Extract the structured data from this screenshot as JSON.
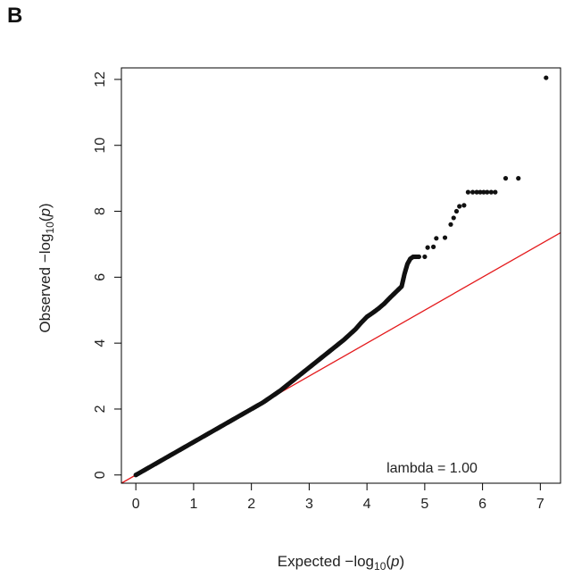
{
  "panel_label": "B",
  "colors": {
    "points": "#111111",
    "reference_line": "#e41a1c",
    "axis": "#000000"
  },
  "chart_data": {
    "type": "scatter",
    "title": "",
    "xlabel": "Expected −log₁₀(p)",
    "ylabel": "Observed −log₁₀(p)",
    "xlabel_parts": {
      "prefix": "Expected  −log",
      "sub": "10",
      "open": "(",
      "var": "p",
      "close": ")"
    },
    "ylabel_parts": {
      "prefix": "Observed  −log",
      "sub": "10",
      "open": "(",
      "var": "p",
      "close": ")"
    },
    "xlim": [
      -0.25,
      7.35
    ],
    "ylim": [
      -0.25,
      12.35
    ],
    "x_ticks": [
      0,
      1,
      2,
      3,
      4,
      5,
      6,
      7
    ],
    "x_tick_labels": [
      "0",
      "1",
      "2",
      "3",
      "4",
      "5",
      "6",
      "7"
    ],
    "y_ticks": [
      0,
      2,
      4,
      6,
      8,
      10,
      12
    ],
    "y_tick_labels": [
      "0",
      "2",
      "4",
      "6",
      "8",
      "10",
      "12"
    ],
    "grid": false,
    "reference_line": {
      "slope": 1,
      "intercept": 0
    },
    "annotation": "lambda = 1.00",
    "series": [
      {
        "type": "scatter",
        "points": [
          [
            0,
            0
          ],
          [
            0.1,
            0.1
          ],
          [
            0.2,
            0.2
          ],
          [
            0.3,
            0.3
          ],
          [
            0.4,
            0.4
          ],
          [
            0.5,
            0.5
          ],
          [
            0.6,
            0.6
          ],
          [
            0.7,
            0.7
          ],
          [
            0.8,
            0.8
          ],
          [
            0.9,
            0.9
          ],
          [
            1.0,
            1.0
          ],
          [
            1.1,
            1.1
          ],
          [
            1.2,
            1.2
          ],
          [
            1.3,
            1.3
          ],
          [
            1.4,
            1.4
          ],
          [
            1.5,
            1.5
          ],
          [
            1.6,
            1.6
          ],
          [
            1.7,
            1.7
          ],
          [
            1.8,
            1.8
          ],
          [
            1.9,
            1.9
          ],
          [
            2.0,
            2.0
          ],
          [
            2.1,
            2.1
          ],
          [
            2.2,
            2.2
          ],
          [
            2.3,
            2.32
          ],
          [
            2.4,
            2.44
          ],
          [
            2.5,
            2.56
          ],
          [
            2.6,
            2.7
          ],
          [
            2.7,
            2.84
          ],
          [
            2.8,
            2.98
          ],
          [
            2.9,
            3.12
          ],
          [
            3.0,
            3.26
          ],
          [
            3.1,
            3.4
          ],
          [
            3.2,
            3.54
          ],
          [
            3.3,
            3.68
          ],
          [
            3.4,
            3.82
          ],
          [
            3.5,
            3.96
          ],
          [
            3.6,
            4.1
          ],
          [
            3.7,
            4.26
          ],
          [
            3.8,
            4.42
          ],
          [
            3.9,
            4.62
          ],
          [
            4.0,
            4.8
          ],
          [
            4.1,
            4.92
          ],
          [
            4.2,
            5.05
          ],
          [
            4.3,
            5.2
          ],
          [
            4.4,
            5.38
          ],
          [
            4.5,
            5.55
          ],
          [
            4.6,
            5.72
          ],
          [
            4.65,
            6.1
          ],
          [
            4.7,
            6.4
          ],
          [
            4.75,
            6.56
          ],
          [
            4.8,
            6.62
          ],
          [
            4.9,
            6.62
          ],
          [
            5.0,
            6.62
          ],
          [
            5.05,
            6.9
          ],
          [
            5.15,
            6.92
          ],
          [
            5.2,
            7.18
          ],
          [
            5.35,
            7.2
          ],
          [
            5.45,
            7.6
          ],
          [
            5.5,
            7.8
          ],
          [
            5.55,
            8.0
          ],
          [
            5.6,
            8.15
          ],
          [
            5.68,
            8.18
          ],
          [
            5.75,
            8.58
          ],
          [
            5.83,
            8.58
          ],
          [
            5.9,
            8.58
          ],
          [
            5.96,
            8.58
          ],
          [
            6.02,
            8.58
          ],
          [
            6.08,
            8.58
          ],
          [
            6.15,
            8.58
          ],
          [
            6.22,
            8.58
          ],
          [
            6.4,
            9.0
          ],
          [
            6.62,
            9.0
          ],
          [
            7.1,
            12.05
          ]
        ]
      }
    ]
  }
}
